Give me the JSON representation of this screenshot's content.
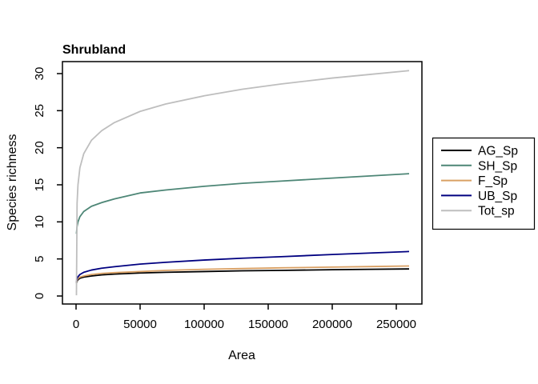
{
  "figure": {
    "title": "Shrubland",
    "xlabel": "Area",
    "ylabel": "Species richness"
  },
  "chart_data": {
    "type": "line",
    "title": "Shrubland",
    "xlabel": "Area",
    "ylabel": "Species richness",
    "xlim": [
      -10400,
      270400
    ],
    "ylim": [
      -1.1,
      31.7
    ],
    "grid": false,
    "legend_position": "right-outside-box",
    "x_tick_values": [
      0,
      50000,
      100000,
      150000,
      200000,
      250000
    ],
    "x_tick_labels": [
      "0",
      "50000",
      "100000",
      "150000",
      "200000",
      "250000"
    ],
    "y_tick_values": [
      0,
      5,
      10,
      15,
      20,
      25,
      30
    ],
    "y_tick_labels": [
      "0",
      "5",
      "10",
      "15",
      "20",
      "25",
      "30"
    ],
    "x": [
      300,
      800,
      1500,
      3000,
      6000,
      12000,
      20000,
      30000,
      50000,
      70000,
      100000,
      130000,
      160000,
      200000,
      230000,
      260000
    ],
    "series": [
      {
        "name": "AG_Sp",
        "color": "#000000",
        "values": [
          1.7,
          2.0,
          2.2,
          2.4,
          2.55,
          2.7,
          2.85,
          2.95,
          3.1,
          3.2,
          3.3,
          3.4,
          3.45,
          3.55,
          3.6,
          3.65
        ]
      },
      {
        "name": "SH_Sp",
        "color": "#4D8676",
        "values": [
          8.4,
          9.4,
          10.0,
          10.7,
          11.4,
          12.1,
          12.6,
          13.1,
          13.9,
          14.3,
          14.8,
          15.2,
          15.5,
          15.9,
          16.2,
          16.5
        ]
      },
      {
        "name": "F_Sp",
        "color": "#D9A064",
        "values": [
          1.8,
          2.15,
          2.35,
          2.55,
          2.7,
          2.9,
          3.05,
          3.15,
          3.3,
          3.45,
          3.6,
          3.7,
          3.8,
          3.9,
          3.97,
          4.05
        ]
      },
      {
        "name": "UB_Sp",
        "color": "#000080",
        "values": [
          1.9,
          2.35,
          2.6,
          2.9,
          3.2,
          3.5,
          3.75,
          3.95,
          4.3,
          4.55,
          4.85,
          5.1,
          5.3,
          5.6,
          5.8,
          6.0
        ]
      },
      {
        "name": "Tot_sp",
        "color": "#BEBEBE",
        "values": [
          0.1,
          12.5,
          15.0,
          17.3,
          19.2,
          21.0,
          22.3,
          23.4,
          24.9,
          25.9,
          27.0,
          27.9,
          28.6,
          29.4,
          29.9,
          30.4
        ]
      }
    ],
    "legend": [
      "AG_Sp",
      "SH_Sp",
      "F_Sp",
      "UB_Sp",
      "Tot_sp"
    ]
  }
}
